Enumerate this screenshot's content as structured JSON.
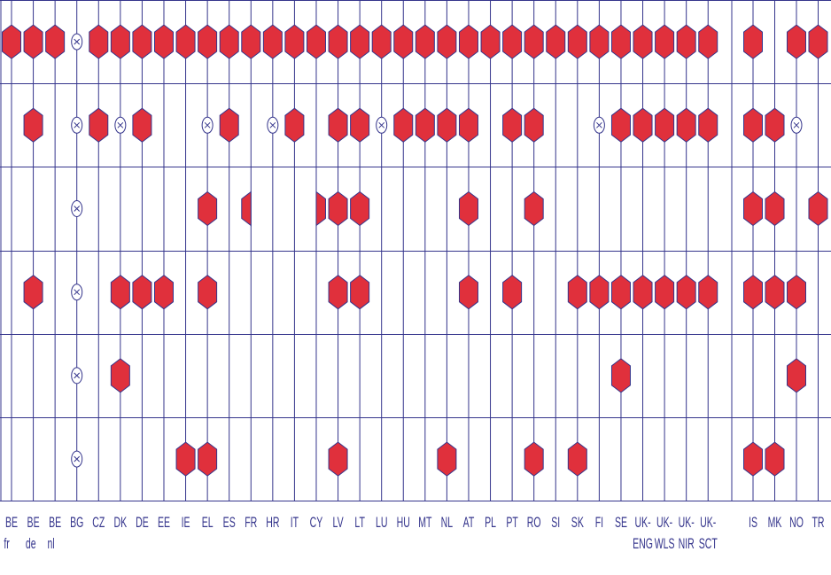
{
  "columns": [
    [
      "BE",
      "fr"
    ],
    [
      "BE",
      "de"
    ],
    [
      "BE",
      "nl"
    ],
    [
      "BG"
    ],
    [
      "CZ"
    ],
    [
      "DK"
    ],
    [
      "DE"
    ],
    [
      "EE"
    ],
    [
      "IE"
    ],
    [
      "EL"
    ],
    [
      "ES"
    ],
    [
      "FR"
    ],
    [
      "HR"
    ],
    [
      "IT"
    ],
    [
      "CY"
    ],
    [
      "LV"
    ],
    [
      "LT"
    ],
    [
      "LU"
    ],
    [
      "HU"
    ],
    [
      "MT"
    ],
    [
      "NL"
    ],
    [
      "AT"
    ],
    [
      "PL"
    ],
    [
      "PT"
    ],
    [
      "RO"
    ],
    [
      "SI"
    ],
    [
      "SK"
    ],
    [
      "FI"
    ],
    [
      "SE"
    ],
    [
      "UK-",
      "ENG"
    ],
    [
      "UK-",
      "WLS"
    ],
    [
      "UK-",
      "NIR"
    ],
    [
      "UK-",
      "SCT"
    ],
    [
      "IS"
    ],
    [
      "MK"
    ],
    [
      "NO"
    ],
    [
      "TR"
    ]
  ],
  "rows": [
    "MMMXMMMMMMMMMMMMMMMMMMMMMMMMMMMMMM.MM",
    ".M.XMXM..XM.XM.MMXMMMM.MM..XMMMMMMMX.",
    "...X.....M.L..RMM....M..M........MM.M",
    ".M.X.MMM.M.....MM....M.M..MMMMMMMMMM.",
    "...X.M......................M......M.",
    "...X....MM.....M....M...M.M......MM.."
  ]
}
